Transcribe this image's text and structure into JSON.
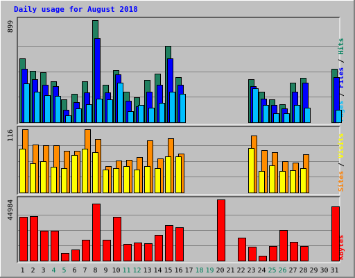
{
  "chart_data": {
    "type": "bar",
    "title": "Daily usage for August 2018",
    "x": [
      "1",
      "2",
      "3",
      "4",
      "5",
      "6",
      "7",
      "8",
      "9",
      "10",
      "11",
      "12",
      "13",
      "14",
      "15",
      "16",
      "17",
      "18",
      "19",
      "20",
      "21",
      "22",
      "23",
      "24",
      "25",
      "26",
      "27",
      "28",
      "29",
      "30",
      "31"
    ],
    "weekend_days": [
      "4",
      "5",
      "11",
      "12",
      "18",
      "19",
      "25",
      "26"
    ],
    "panels": [
      {
        "name": "hits-files-pages",
        "ymax_label": "899",
        "ymax": 899,
        "label_parts": [
          {
            "text": "Pages",
            "color": "#00c0ff"
          },
          {
            "text": " / ",
            "color": "#000000"
          },
          {
            "text": "Files",
            "color": "#0000ff"
          },
          {
            "text": " / ",
            "color": "#000000"
          },
          {
            "text": "Hits",
            "color": "#00805c"
          }
        ],
        "series": [
          {
            "name": "Hits",
            "color": "#208060",
            "values": [
              560,
              450,
              440,
              360,
              200,
              250,
              360,
              899,
              330,
              460,
              270,
              220,
              370,
              430,
              670,
              400,
              0,
              0,
              0,
              0,
              0,
              0,
              380,
              270,
              200,
              160,
              350,
              390,
              0,
              0,
              470
            ]
          },
          {
            "name": "Files",
            "color": "#0000ff",
            "values": [
              470,
              380,
              330,
              320,
              110,
              180,
              260,
              740,
              260,
              420,
              190,
              140,
              270,
              330,
              560,
              330,
              0,
              0,
              0,
              0,
              0,
              0,
              320,
              210,
              150,
              120,
              270,
              350,
              0,
              0,
              400
            ]
          },
          {
            "name": "Pages",
            "color": "#00bfff",
            "values": [
              340,
              270,
              240,
              230,
              60,
              120,
              160,
              210,
              200,
              350,
              100,
              150,
              130,
              170,
              270,
              250,
              0,
              0,
              0,
              0,
              0,
              0,
              300,
              150,
              80,
              80,
              150,
              130,
              0,
              0,
              110
            ]
          }
        ]
      },
      {
        "name": "visits-sites",
        "ymax_label": "116",
        "ymax": 116,
        "label_parts": [
          {
            "text": "Sites",
            "color": "#ff8000"
          },
          {
            "text": " / ",
            "color": "#000000"
          },
          {
            "text": "Visits",
            "color": "#ffff00"
          }
        ],
        "series": [
          {
            "name": "Visits",
            "color": "#ff8c00",
            "values": [
              116,
              88,
              87,
              87,
              76,
              76,
              116,
              98,
              48,
              59,
              60,
              65,
              96,
              63,
              99,
              72,
              0,
              0,
              0,
              0,
              0,
              0,
              104,
              78,
              74,
              57,
              55,
              70,
              0,
              0,
              0
            ]
          },
          {
            "name": "Sites",
            "color": "#ffff00",
            "values": [
              80,
              54,
              57,
              47,
              45,
              69,
              80,
              74,
              42,
              45,
              48,
              42,
              49,
              45,
              66,
              66,
              0,
              0,
              0,
              0,
              0,
              0,
              81,
              40,
              50,
              40,
              41,
              45,
              0,
              0,
              0
            ]
          }
        ]
      },
      {
        "name": "kbytes",
        "ymax_label": "44984",
        "ymax": 44984,
        "label_parts": [
          {
            "text": "KBytes",
            "color": "#ff0000"
          }
        ],
        "series": [
          {
            "name": "KBytes",
            "color": "#ff0000",
            "values": [
              32000,
              32500,
              21800,
              21800,
              5400,
              8000,
              15500,
              42000,
              15500,
              32100,
              12200,
              13300,
              12800,
              19100,
              25900,
              24700,
              0,
              0,
              0,
              44984,
              0,
              16700,
              10200,
              3700,
              10500,
              22500,
              13800,
              10500,
              0,
              0,
              40000
            ]
          }
        ]
      }
    ]
  }
}
